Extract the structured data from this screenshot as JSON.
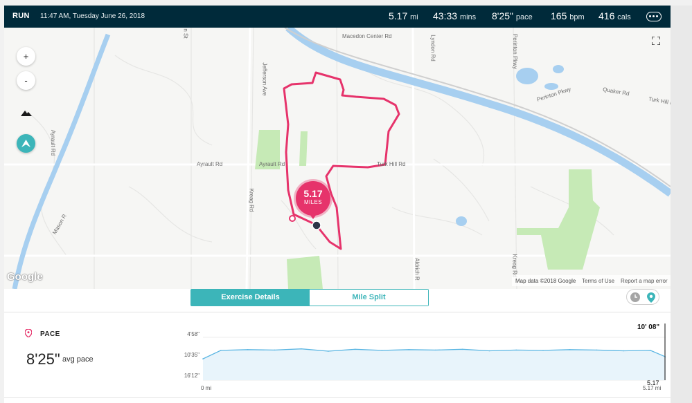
{
  "header": {
    "activity": "RUN",
    "datetime": "11:47 AM, Tuesday June 26, 2018",
    "distance_value": "5.17",
    "distance_unit": "mi",
    "duration_value": "43:33",
    "duration_unit": "mins",
    "pace_value": "8'25\"",
    "pace_unit": "pace",
    "hr_value": "165",
    "hr_unit": "bpm",
    "calories_value": "416",
    "calories_unit": "cals",
    "more_icon": "ellipsis-icon"
  },
  "map": {
    "zoom_in": "+",
    "zoom_out": "-",
    "terrain_icon": "mountain-icon",
    "route_icon": "route-marker-icon",
    "fullscreen_icon": "fullscreen-icon",
    "roads": [
      "Macedon Center Rd",
      "Lyndon Rd",
      "Perinton Pkwy",
      "Perinton Pkwy",
      "Quaker Rd",
      "Turk Hill Rd",
      "Jefferson Ave",
      "Ayrault Rd",
      "Ayrault Rd",
      "Ayrault Rd",
      "Turk Hill Rd",
      "Kreag Rd",
      "Mason R",
      "Aldrich R",
      "Kreag Rd",
      "n St"
    ],
    "pin_value": "5.17",
    "pin_unit": "MILES",
    "google_logo": "Google",
    "attribution": [
      "Map data ©2018 Google",
      "Terms of Use",
      "Report a map error"
    ],
    "route_color": "#e6336b"
  },
  "tabs": {
    "active": "Exercise Details",
    "inactive": "Mile Split",
    "clock_icon": "clock-icon",
    "pin_icon": "location-pin-icon"
  },
  "pace": {
    "label": "PACE",
    "icon": "location-pin-icon",
    "avg_value": "8'25\"",
    "avg_label": "avg pace",
    "cursor_value": "10' 08\"",
    "cursor_distance": "5.17",
    "chart_data": {
      "type": "area",
      "yticks": [
        "4'58\"",
        "10'35\"",
        "16'12\""
      ],
      "xticks": [
        "0 mi",
        "5.17 mi"
      ],
      "x": [
        0,
        0.2,
        0.5,
        0.8,
        1.1,
        1.4,
        1.7,
        2.0,
        2.3,
        2.6,
        2.9,
        3.2,
        3.5,
        3.8,
        4.1,
        4.4,
        4.7,
        5.0,
        5.17
      ],
      "y": [
        10.6,
        8.4,
        8.2,
        8.3,
        8.0,
        8.6,
        8.1,
        8.4,
        8.2,
        8.3,
        8.1,
        8.5,
        8.3,
        8.4,
        8.2,
        8.3,
        8.5,
        8.4,
        10.1
      ],
      "y_unit": "min/mi",
      "ylim": [
        4.97,
        16.2
      ],
      "xlim": [
        0,
        5.17
      ],
      "fill_color": "#e8f4fb",
      "line_color": "#5bb6e3"
    }
  }
}
